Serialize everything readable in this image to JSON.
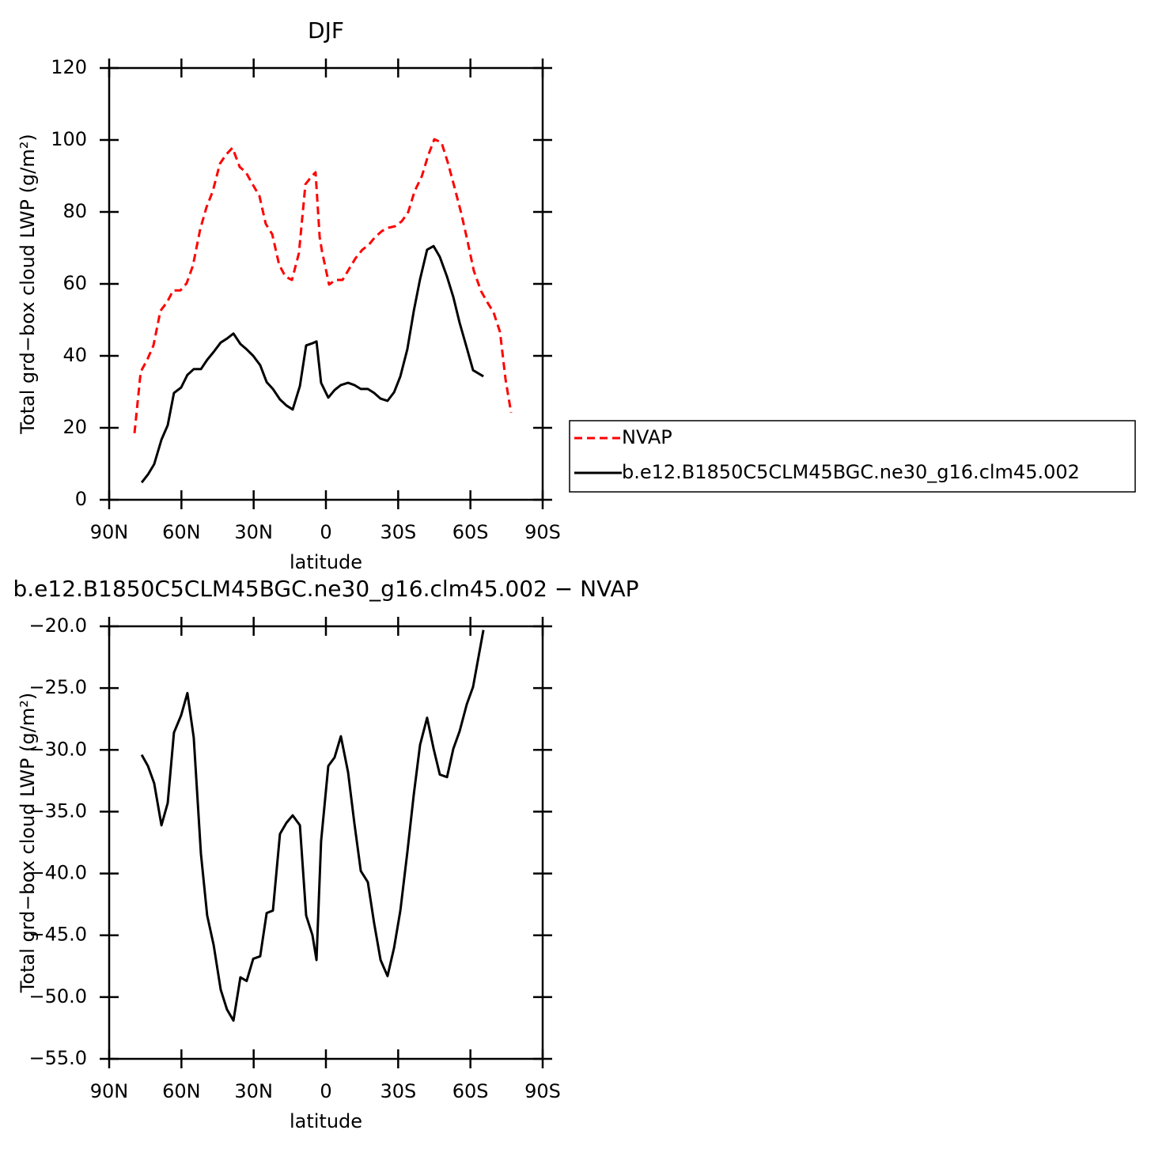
{
  "chart_data": [
    {
      "type": "line",
      "title": "DJF",
      "xlabel": "latitude",
      "ylabel": "Total grd−box cloud LWP (g/m²)",
      "xlim": [
        90,
        -90
      ],
      "ylim": [
        0,
        120
      ],
      "xticks": [
        {
          "value": 90,
          "label": "90N"
        },
        {
          "value": 60,
          "label": "60N"
        },
        {
          "value": 30,
          "label": "30N"
        },
        0,
        {
          "value": -30,
          "label": "30S"
        },
        {
          "value": -60,
          "label": "60S"
        },
        {
          "value": -90,
          "label": "90S"
        }
      ],
      "yticks": [
        0,
        20,
        40,
        60,
        80,
        100,
        120
      ],
      "legend": "right",
      "series": [
        {
          "name": "NVAP",
          "color": "#ff0000",
          "dash": true,
          "x": [
            79.5,
            76.9,
            74.2,
            71.6,
            68.7,
            66.0,
            63.4,
            60.4,
            57.8,
            55.2,
            52.2,
            49.6,
            47.0,
            44.0,
            41.4,
            38.8,
            35.8,
            33.2,
            30.6,
            27.6,
            25.0,
            22.3,
            19.4,
            16.8,
            14.1,
            11.2,
            8.5,
            5.9,
            4.3,
            2.6,
            1.6,
            -1.3,
            -3.9,
            -6.9,
            -9.5,
            -12.2,
            -15.1,
            -17.7,
            -20.4,
            -23.3,
            -26.0,
            -28.6,
            -31.5,
            -34.2,
            -36.8,
            -39.8,
            -42.4,
            -45.0,
            -48.0,
            -50.6,
            -53.2,
            -56.2,
            -58.8,
            -61.4,
            -64.4,
            -67.0,
            -69.6,
            -72.3,
            -74.6,
            -76.9
          ],
          "values": [
            18.5,
            35.6,
            38.9,
            42.9,
            52.5,
            54.9,
            58.2,
            58.2,
            60.2,
            65.1,
            75.2,
            81.3,
            85.7,
            93.4,
            96.0,
            97.8,
            92.5,
            91.0,
            87.9,
            84.4,
            76.7,
            73.8,
            65.3,
            62.0,
            61.1,
            68.6,
            87.7,
            89.9,
            91.0,
            73.0,
            69.0,
            59.8,
            61.1,
            61.1,
            64.0,
            67.0,
            69.5,
            70.8,
            73.0,
            74.7,
            75.6,
            76.0,
            77.4,
            80.0,
            85.7,
            89.9,
            95.6,
            100.2,
            99.3,
            93.8,
            87.3,
            79.6,
            71.9,
            63.7,
            58.0,
            54.9,
            52.1,
            46.6,
            33.4,
            24.2
          ]
        },
        {
          "name": "b.e12.B1850C5CLM45BGC.ne30_g16.clm45.002",
          "color": "#000000",
          "dash": false,
          "x": [
            76.5,
            73.9,
            71.3,
            68.3,
            65.7,
            63.1,
            60.1,
            57.5,
            54.9,
            51.9,
            49.3,
            46.6,
            43.7,
            41.1,
            38.4,
            35.5,
            32.9,
            30.2,
            27.3,
            24.6,
            22.0,
            19.1,
            16.4,
            13.8,
            10.8,
            8.2,
            5.6,
            3.9,
            2.0,
            -1.0,
            -3.6,
            -6.2,
            -9.2,
            -11.8,
            -14.5,
            -17.4,
            -20.0,
            -22.7,
            -25.6,
            -28.3,
            -30.9,
            -33.8,
            -36.5,
            -39.1,
            -42.0,
            -44.7,
            -47.3,
            -50.3,
            -52.9,
            -55.5,
            -58.5,
            -61.1,
            -65.4
          ],
          "values": [
            4.8,
            7.0,
            9.9,
            16.7,
            20.7,
            29.7,
            31.2,
            34.7,
            36.3,
            36.3,
            38.9,
            41.1,
            43.7,
            44.8,
            46.2,
            43.3,
            41.8,
            40.0,
            37.4,
            32.7,
            30.8,
            27.9,
            26.2,
            25.1,
            31.6,
            42.9,
            43.5,
            44.0,
            32.5,
            28.4,
            30.5,
            31.9,
            32.5,
            31.9,
            30.8,
            30.8,
            29.7,
            28.1,
            27.5,
            29.9,
            34.3,
            41.8,
            52.5,
            61.3,
            69.5,
            70.5,
            67.5,
            62.0,
            56.3,
            49.2,
            42.2,
            36.0,
            34.3
          ]
        }
      ]
    },
    {
      "type": "line",
      "title": "b.e12.B1850C5CLM45BGC.ne30_g16.clm45.002 − NVAP",
      "xlabel": "latitude",
      "ylabel": "Total grd−box cloud LWP (g/m²)",
      "xlim": [
        90,
        -90
      ],
      "ylim": [
        -55,
        -20
      ],
      "xticks": [
        {
          "value": 90,
          "label": "90N"
        },
        {
          "value": 60,
          "label": "60N"
        },
        {
          "value": 30,
          "label": "30N"
        },
        0,
        {
          "value": -30,
          "label": "30S"
        },
        {
          "value": -60,
          "label": "60S"
        },
        {
          "value": -90,
          "label": "90S"
        }
      ],
      "yticks": [
        {
          "value": -55,
          "label": "−55.0"
        },
        {
          "value": -50,
          "label": "−50.0"
        },
        {
          "value": -45,
          "label": "−45.0"
        },
        {
          "value": -40,
          "label": "−40.0"
        },
        {
          "value": -35,
          "label": "−35.0"
        },
        {
          "value": -30,
          "label": "−30.0"
        },
        {
          "value": -25,
          "label": "−25.0"
        },
        {
          "value": -20,
          "label": "−20.0"
        }
      ],
      "series": [
        {
          "color": "#000000",
          "dash": false,
          "x": [
            76.5,
            73.9,
            71.3,
            68.3,
            65.7,
            63.1,
            60.1,
            57.5,
            54.9,
            51.9,
            49.3,
            46.6,
            43.7,
            41.1,
            38.4,
            35.5,
            32.9,
            30.2,
            27.3,
            24.6,
            22.0,
            19.1,
            16.4,
            13.8,
            10.8,
            8.2,
            5.6,
            3.9,
            2.0,
            -1.0,
            -3.6,
            -6.2,
            -9.2,
            -11.8,
            -14.5,
            -17.4,
            -20.0,
            -22.7,
            -25.6,
            -28.3,
            -30.9,
            -33.8,
            -36.5,
            -39.1,
            -42.0,
            -44.7,
            -47.3,
            -50.3,
            -52.9,
            -55.5,
            -58.5,
            -61.1,
            -65.4
          ],
          "values": [
            -30.4,
            -31.3,
            -32.7,
            -36.1,
            -34.3,
            -28.6,
            -27.2,
            -25.4,
            -29.0,
            -38.4,
            -43.4,
            -45.8,
            -49.4,
            -51.0,
            -51.9,
            -48.4,
            -48.7,
            -46.9,
            -46.7,
            -43.2,
            -43.0,
            -36.8,
            -35.9,
            -35.3,
            -36.1,
            -43.4,
            -45.0,
            -47.0,
            -37.4,
            -31.3,
            -30.6,
            -28.9,
            -31.8,
            -35.9,
            -39.8,
            -40.7,
            -44.0,
            -47.0,
            -48.3,
            -46.0,
            -43.0,
            -38.3,
            -33.6,
            -29.6,
            -27.4,
            -29.9,
            -32.0,
            -32.2,
            -29.9,
            -28.5,
            -26.3,
            -24.9,
            -20.3
          ]
        }
      ]
    }
  ]
}
